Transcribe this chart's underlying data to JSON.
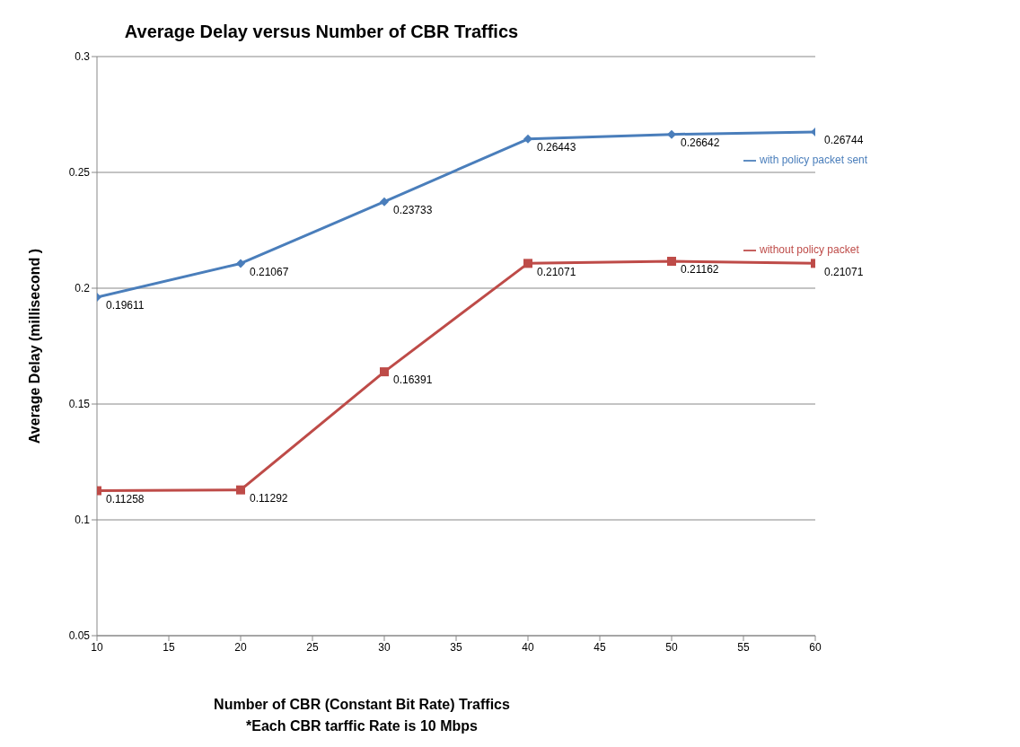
{
  "chart_data": {
    "type": "line",
    "title": "Average Delay versus Number of CBR Traffics",
    "xlabel": "Number of CBR (Constant Bit Rate) Traffics",
    "ylabel": "Average Delay (millisecond )",
    "annotations": [
      "*Each CBR tarffic Rate is 10 Mbps"
    ],
    "x": [
      10,
      20,
      30,
      40,
      50,
      60
    ],
    "series": [
      {
        "name": "with policy packet sent",
        "color": "#4a7ebb",
        "marker": "diamond",
        "values": [
          0.19611,
          0.21067,
          0.23733,
          0.26443,
          0.26642,
          0.26744
        ]
      },
      {
        "name": "without policy packet",
        "color": "#be4b48",
        "marker": "square",
        "values": [
          0.11258,
          0.11292,
          0.16391,
          0.21071,
          0.21162,
          0.21071
        ]
      }
    ],
    "xlim": [
      10,
      60
    ],
    "xticks": [
      10,
      15,
      20,
      25,
      30,
      35,
      40,
      45,
      50,
      55,
      60
    ],
    "ylim": [
      0.05,
      0.3
    ],
    "yticks": [
      0.05,
      0.1,
      0.15,
      0.2,
      0.25,
      0.3
    ],
    "grid": "y",
    "legend": "right",
    "data_labels": true
  }
}
